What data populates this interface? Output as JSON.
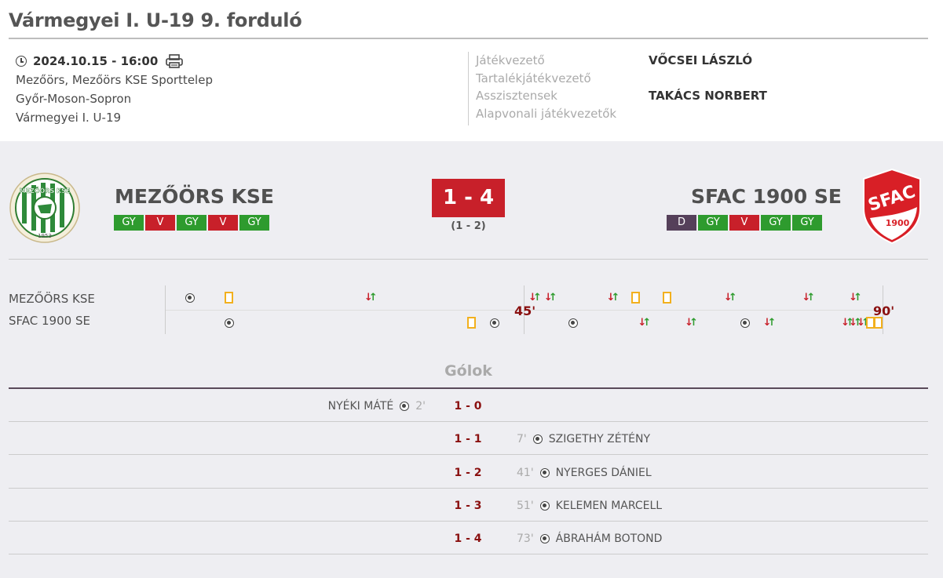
{
  "header": {
    "title": "Vármegyei I. U-19 9. forduló"
  },
  "info": {
    "datetime": "2024.10.15 - 16:00",
    "venue": "Mezőörs, Mezőörs KSE Sporttelep",
    "county": "Győr-Moson-Sopron",
    "league": "Vármegyei I. U-19"
  },
  "referees": {
    "labels": [
      "Játékvezető",
      "Tartalékjátékvezető",
      "Asszisztensek",
      "Alapvonali játékvezetők"
    ],
    "values": [
      "VŐCSEI LÁSZLÓ",
      "",
      "TAKÁCS NORBERT",
      ""
    ]
  },
  "match": {
    "home": {
      "name": "MEZŐÖRS KSE",
      "logo_text": "MEZŐÖRS KSE",
      "logo_year": "1953",
      "form": [
        "GY",
        "V",
        "GY",
        "V",
        "GY"
      ]
    },
    "away": {
      "name": "SFAC 1900 SE",
      "logo_text": "SFAC",
      "logo_year": "1900",
      "form": [
        "D",
        "GY",
        "V",
        "GY",
        "GY"
      ]
    },
    "score": "1 - 4",
    "halftime": "(1 - 2)"
  },
  "timeline": {
    "home_label": "MEZŐÖRS KSE",
    "away_label": "SFAC 1900 SE",
    "half_label": "45'",
    "full_label": "90'",
    "home_events": [
      {
        "type": "ball",
        "minute": 2
      },
      {
        "type": "card",
        "minute": 7
      },
      {
        "type": "sub",
        "minute": 25
      },
      {
        "type": "sub",
        "minute": 46
      },
      {
        "type": "sub",
        "minute": 48
      },
      {
        "type": "sub",
        "minute": 56
      },
      {
        "type": "card",
        "minute": 59
      },
      {
        "type": "card",
        "minute": 63
      },
      {
        "type": "sub",
        "minute": 71
      },
      {
        "type": "sub",
        "minute": 81
      },
      {
        "type": "sub",
        "minute": 87
      }
    ],
    "away_events": [
      {
        "type": "ball",
        "minute": 7
      },
      {
        "type": "card",
        "minute": 38
      },
      {
        "type": "ball",
        "minute": 41
      },
      {
        "type": "ball",
        "minute": 51
      },
      {
        "type": "sub",
        "minute": 60
      },
      {
        "type": "sub",
        "minute": 66
      },
      {
        "type": "ball",
        "minute": 73
      },
      {
        "type": "sub",
        "minute": 76
      },
      {
        "type": "sub",
        "minute": 86
      },
      {
        "type": "sub",
        "minute": 87
      },
      {
        "type": "sub",
        "minute": 88
      },
      {
        "type": "card",
        "minute": 89
      },
      {
        "type": "card",
        "minute": 90
      }
    ]
  },
  "goals": {
    "title": "Gólok",
    "rows": [
      {
        "score": "1 - 0",
        "side": "home",
        "player": "NYÉKI MÁTÉ",
        "minute": "2'"
      },
      {
        "score": "1 - 1",
        "side": "away",
        "player": "SZIGETHY ZÉTÉNY",
        "minute": "7'"
      },
      {
        "score": "1 - 2",
        "side": "away",
        "player": "NYERGES DÁNIEL",
        "minute": "41'"
      },
      {
        "score": "1 - 3",
        "side": "away",
        "player": "KELEMEN MARCELL",
        "minute": "51'"
      },
      {
        "score": "1 - 4",
        "side": "away",
        "player": "ÁBRAHÁM BOTOND",
        "minute": "73'"
      }
    ]
  }
}
